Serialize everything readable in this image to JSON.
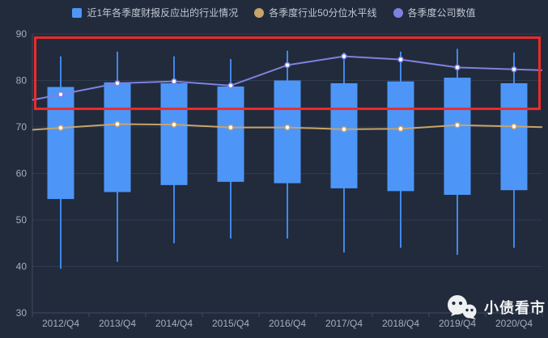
{
  "legend": {
    "items": [
      {
        "label": "近1年各季度财报反应出的行业情况",
        "color": "#4d96f8",
        "shape": "square"
      },
      {
        "label": "各季度行业50分位水平线",
        "color": "#c9a36a",
        "shape": "circle"
      },
      {
        "label": "各季度公司数值",
        "color": "#7e81e0",
        "shape": "circle"
      }
    ]
  },
  "watermark": {
    "text": "小债看市",
    "icon": "wechat-icon"
  },
  "chart_data": {
    "type": "boxplot+line",
    "title": "",
    "xlabel": "",
    "ylabel": "",
    "categories": [
      "2012/Q4",
      "2013/Q4",
      "2014/Q4",
      "2015/Q4",
      "2016/Q4",
      "2017/Q4",
      "2018/Q4",
      "2019/Q4",
      "2020/Q4"
    ],
    "ylim": [
      30,
      90
    ],
    "yticks": [
      30,
      40,
      50,
      60,
      70,
      80,
      90
    ],
    "grid": true,
    "legend_position": "top",
    "series": [
      {
        "name": "近1年各季度财报反应出的行业情况",
        "type": "candlestick-box",
        "color": "#4d96f8",
        "whisker_color": "#4187ec",
        "boxes_format": [
          "whisker_low",
          "box_low",
          "box_high",
          "whisker_high"
        ],
        "boxes": [
          [
            39.5,
            54.5,
            78.6,
            85.2
          ],
          [
            41.0,
            56.0,
            79.6,
            86.2
          ],
          [
            45.0,
            57.5,
            79.4,
            85.2
          ],
          [
            46.0,
            58.2,
            78.7,
            84.6
          ],
          [
            46.0,
            57.9,
            80.0,
            86.4
          ],
          [
            43.0,
            56.8,
            79.4,
            86.0
          ],
          [
            44.0,
            56.2,
            79.8,
            86.2
          ],
          [
            42.5,
            55.4,
            80.6,
            86.8
          ],
          [
            44.0,
            56.4,
            79.4,
            86.0
          ]
        ]
      },
      {
        "name": "各季度行业50分位水平线",
        "type": "line",
        "color": "#c9a36a",
        "symbol": "empty-circle",
        "values": [
          69.8,
          70.6,
          70.5,
          69.9,
          69.9,
          69.5,
          69.6,
          70.4,
          70.1
        ]
      },
      {
        "name": "各季度公司数值",
        "type": "line",
        "color": "#7e81e0",
        "symbol": "empty-circle",
        "values": [
          77.0,
          79.4,
          79.8,
          78.9,
          83.3,
          85.2,
          84.5,
          82.8,
          82.4
        ]
      }
    ],
    "annotation": {
      "type": "rect",
      "color": "#ee2b28",
      "y_low": 73.9,
      "y_high": 89.2
    },
    "colors": {
      "background": "#212b3b",
      "grid": "#2f3b50",
      "axis": "#3e4b61",
      "tick_label": "#a6aebc"
    }
  }
}
